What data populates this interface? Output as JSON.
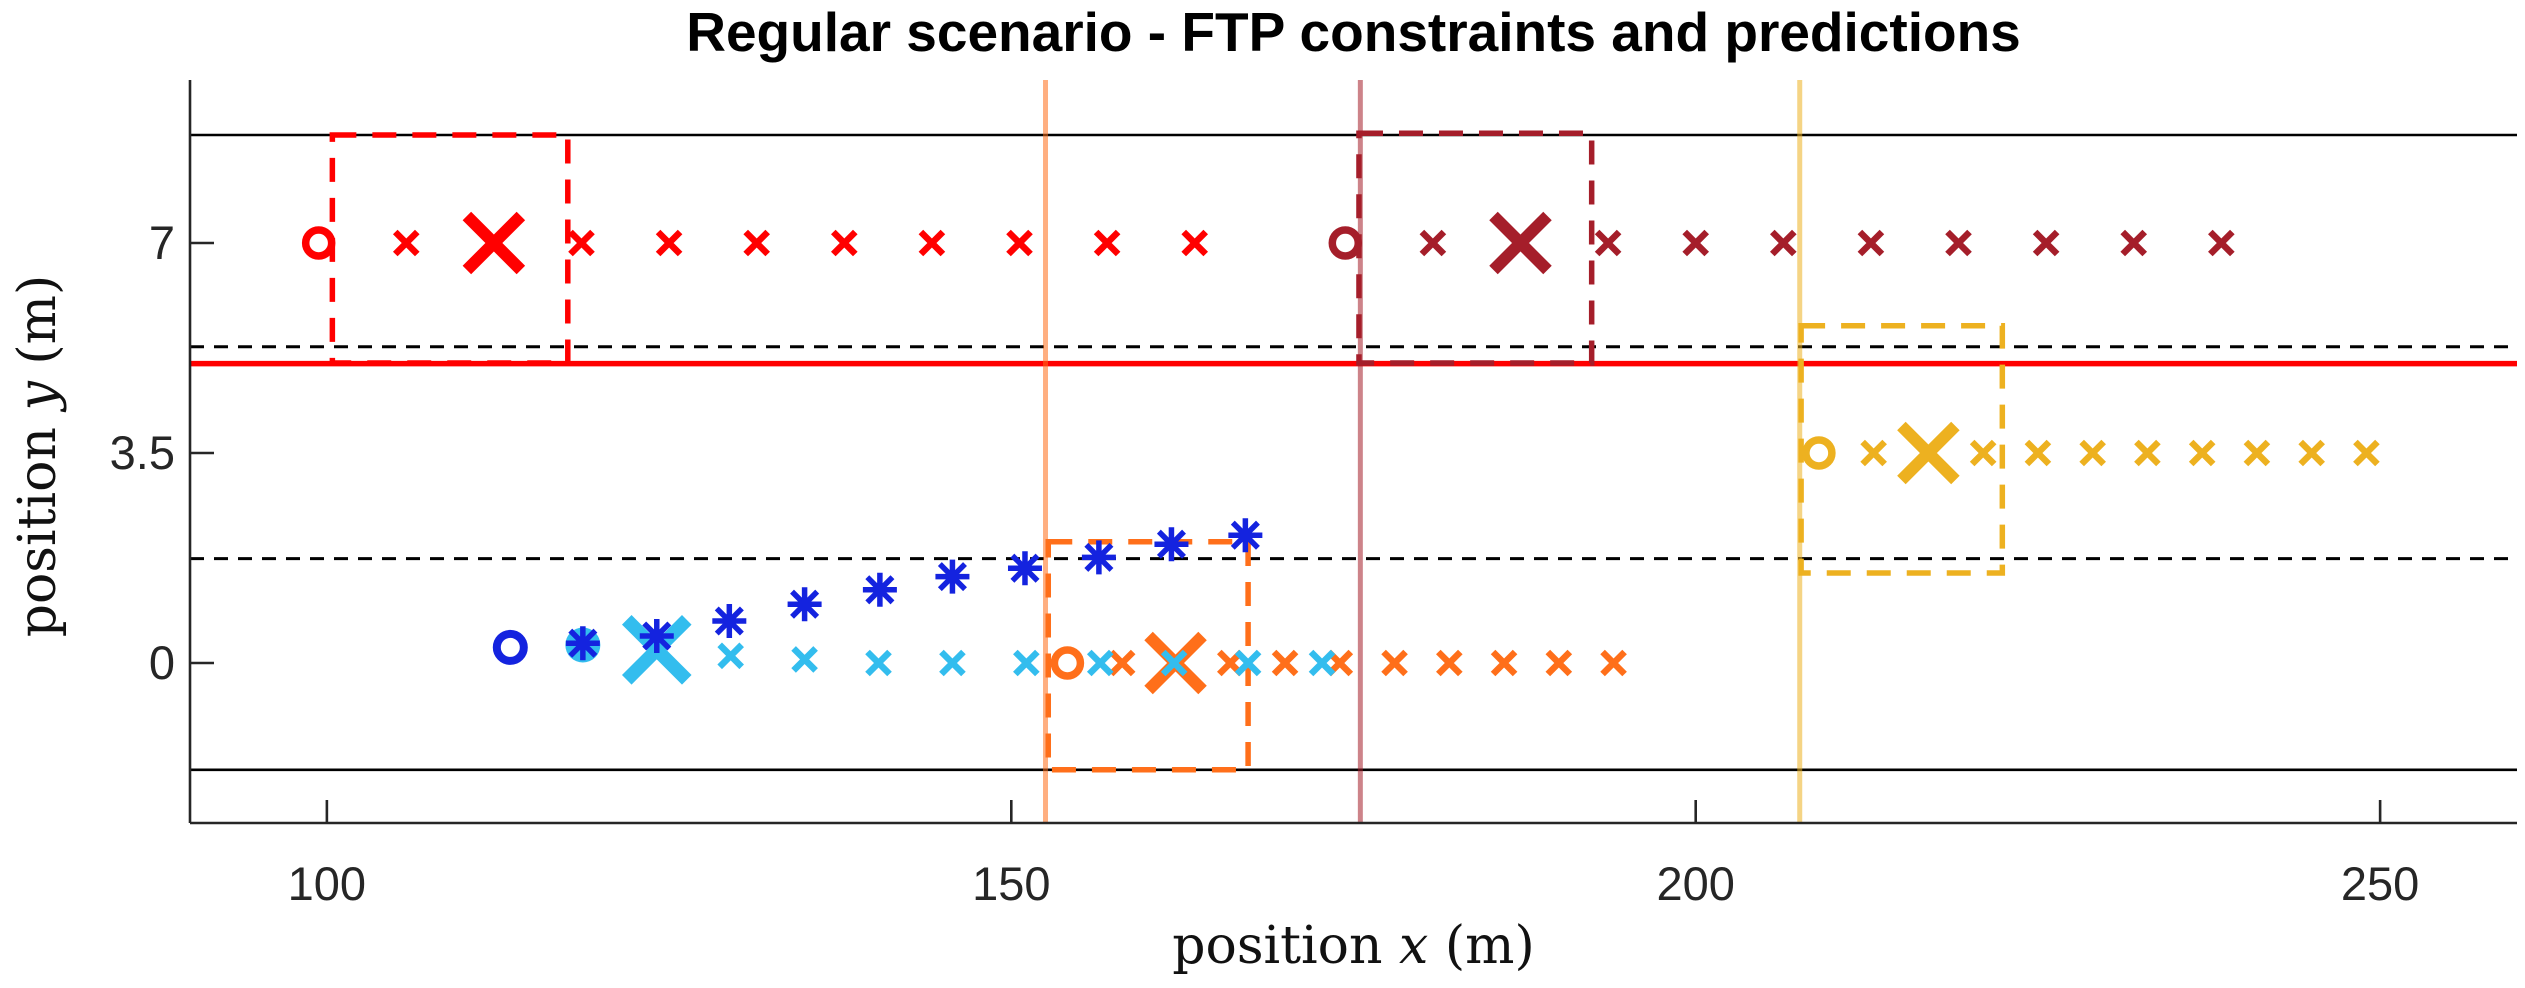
{
  "title": "Regular scenario - FTP constraints and predictions",
  "axis": {
    "xlabel": {
      "pre": "position ",
      "var": "x",
      "post": " (m)"
    },
    "ylabel": {
      "pre": "position ",
      "var": "y",
      "post": " (m)"
    },
    "xticks": {
      "values": [
        100,
        150,
        200,
        250
      ],
      "labels": [
        "100",
        "150",
        "200",
        "250"
      ]
    },
    "yticks": {
      "values": [
        0,
        3.5,
        7
      ],
      "labels": [
        "0",
        "3.5",
        "7"
      ]
    }
  },
  "colors": {
    "red": "#FF0000",
    "dark_red": "#A51E2A",
    "orange": "#FF6F1A",
    "yellow": "#EDB120",
    "cyan": "#33BDEE",
    "blue": "#1423DF",
    "black": "#000000",
    "axis_gray": "#262626"
  },
  "chart_data": {
    "type": "scatter",
    "title": "Regular scenario - FTP constraints and predictions",
    "xlabel": "position x (m)",
    "ylabel": "position y (m)",
    "xlim": [
      90,
      260
    ],
    "ylim": [
      -2.67,
      9.72
    ],
    "grid": false,
    "road": {
      "edge_lines_y": [
        8.8,
        -1.78
      ],
      "lane_marking_dashed_y": [
        5.27,
        1.74
      ],
      "red_constraint_line_y": 4.99
    },
    "vertical_lines": [
      {
        "x": 152.5,
        "color_key": "orange"
      },
      {
        "x": 175.5,
        "color_key": "dark_red"
      },
      {
        "x": 207.6,
        "color_key": "yellow"
      }
    ],
    "vehicles": [
      {
        "name": "vehicle-red",
        "color_key": "red",
        "lane_y": 7,
        "current_pos": [
          99.4,
          7
        ],
        "target_pos": [
          112.2,
          7
        ],
        "predictions": [
          [
            105.8,
            7
          ],
          [
            118.6,
            7
          ],
          [
            125,
            7
          ],
          [
            131.4,
            7
          ],
          [
            137.8,
            7
          ],
          [
            144.2,
            7
          ],
          [
            150.6,
            7
          ],
          [
            157,
            7
          ],
          [
            163.4,
            7
          ]
        ],
        "constraint_box": {
          "x": [
            100.4,
            117.6
          ],
          "y": [
            5.0,
            8.8
          ]
        }
      },
      {
        "name": "vehicle-dark-red",
        "color_key": "dark_red",
        "lane_y": 7,
        "current_pos": [
          174.4,
          7
        ],
        "target_pos": [
          187.2,
          7
        ],
        "predictions": [
          [
            180.8,
            7
          ],
          [
            193.6,
            7
          ],
          [
            200,
            7
          ],
          [
            206.4,
            7
          ],
          [
            212.8,
            7
          ],
          [
            219.2,
            7
          ],
          [
            225.6,
            7
          ],
          [
            232,
            7
          ],
          [
            238.4,
            7
          ]
        ],
        "constraint_box": {
          "x": [
            175.4,
            192.4
          ],
          "y": [
            5.0,
            8.83
          ]
        }
      },
      {
        "name": "vehicle-yellow",
        "color_key": "yellow",
        "lane_y": 3.5,
        "current_pos": [
          209,
          3.5
        ],
        "target_pos": [
          217,
          3.5
        ],
        "predictions": [
          [
            213,
            3.5
          ],
          [
            221,
            3.5
          ],
          [
            225,
            3.5
          ],
          [
            229,
            3.5
          ],
          [
            233,
            3.5
          ],
          [
            237,
            3.5
          ],
          [
            241,
            3.5
          ],
          [
            245,
            3.5
          ],
          [
            249,
            3.5
          ]
        ],
        "constraint_box": {
          "x": [
            207.7,
            222.4
          ],
          "y": [
            1.5,
            5.62
          ]
        }
      },
      {
        "name": "vehicle-orange",
        "color_key": "orange",
        "lane_y": 0,
        "current_pos": [
          154.1,
          0
        ],
        "target_pos": [
          162,
          0
        ],
        "predictions": [
          [
            158.1,
            0
          ],
          [
            166,
            0
          ],
          [
            170,
            0
          ],
          [
            174,
            0
          ],
          [
            178,
            0
          ],
          [
            182,
            0
          ],
          [
            186,
            0
          ],
          [
            190,
            0
          ],
          [
            194,
            0
          ]
        ],
        "constraint_box": {
          "x": [
            152.7,
            167.3
          ],
          "y": [
            -1.78,
            2.02
          ]
        }
      },
      {
        "name": "ego-prediction-cyan",
        "color_key": "cyan",
        "current_marker": "filled_circle",
        "lane_y": 0,
        "current_pos": [
          118.7,
          0.3
        ],
        "target_pos": [
          124.1,
          0.22
        ],
        "predictions": [
          [
            129.5,
            0.12
          ],
          [
            134.9,
            0.06
          ],
          [
            140.3,
            0
          ],
          [
            145.7,
            0
          ],
          [
            151.1,
            0
          ],
          [
            156.5,
            0
          ],
          [
            161.9,
            0
          ],
          [
            167.3,
            0
          ],
          [
            172.7,
            0
          ]
        ]
      }
    ],
    "ego_trajectory": {
      "name": "ego-trajectory-blue",
      "color_key": "blue",
      "circle": [
        113.4,
        0.26
      ],
      "asterisks": [
        [
          118.7,
          0.33
        ],
        [
          124.1,
          0.45
        ],
        [
          129.4,
          0.7
        ],
        [
          134.9,
          0.98
        ],
        [
          140.4,
          1.22
        ],
        [
          145.7,
          1.44
        ],
        [
          151,
          1.58
        ],
        [
          156.4,
          1.76
        ],
        [
          161.7,
          1.98
        ],
        [
          167.1,
          2.13
        ]
      ]
    }
  }
}
